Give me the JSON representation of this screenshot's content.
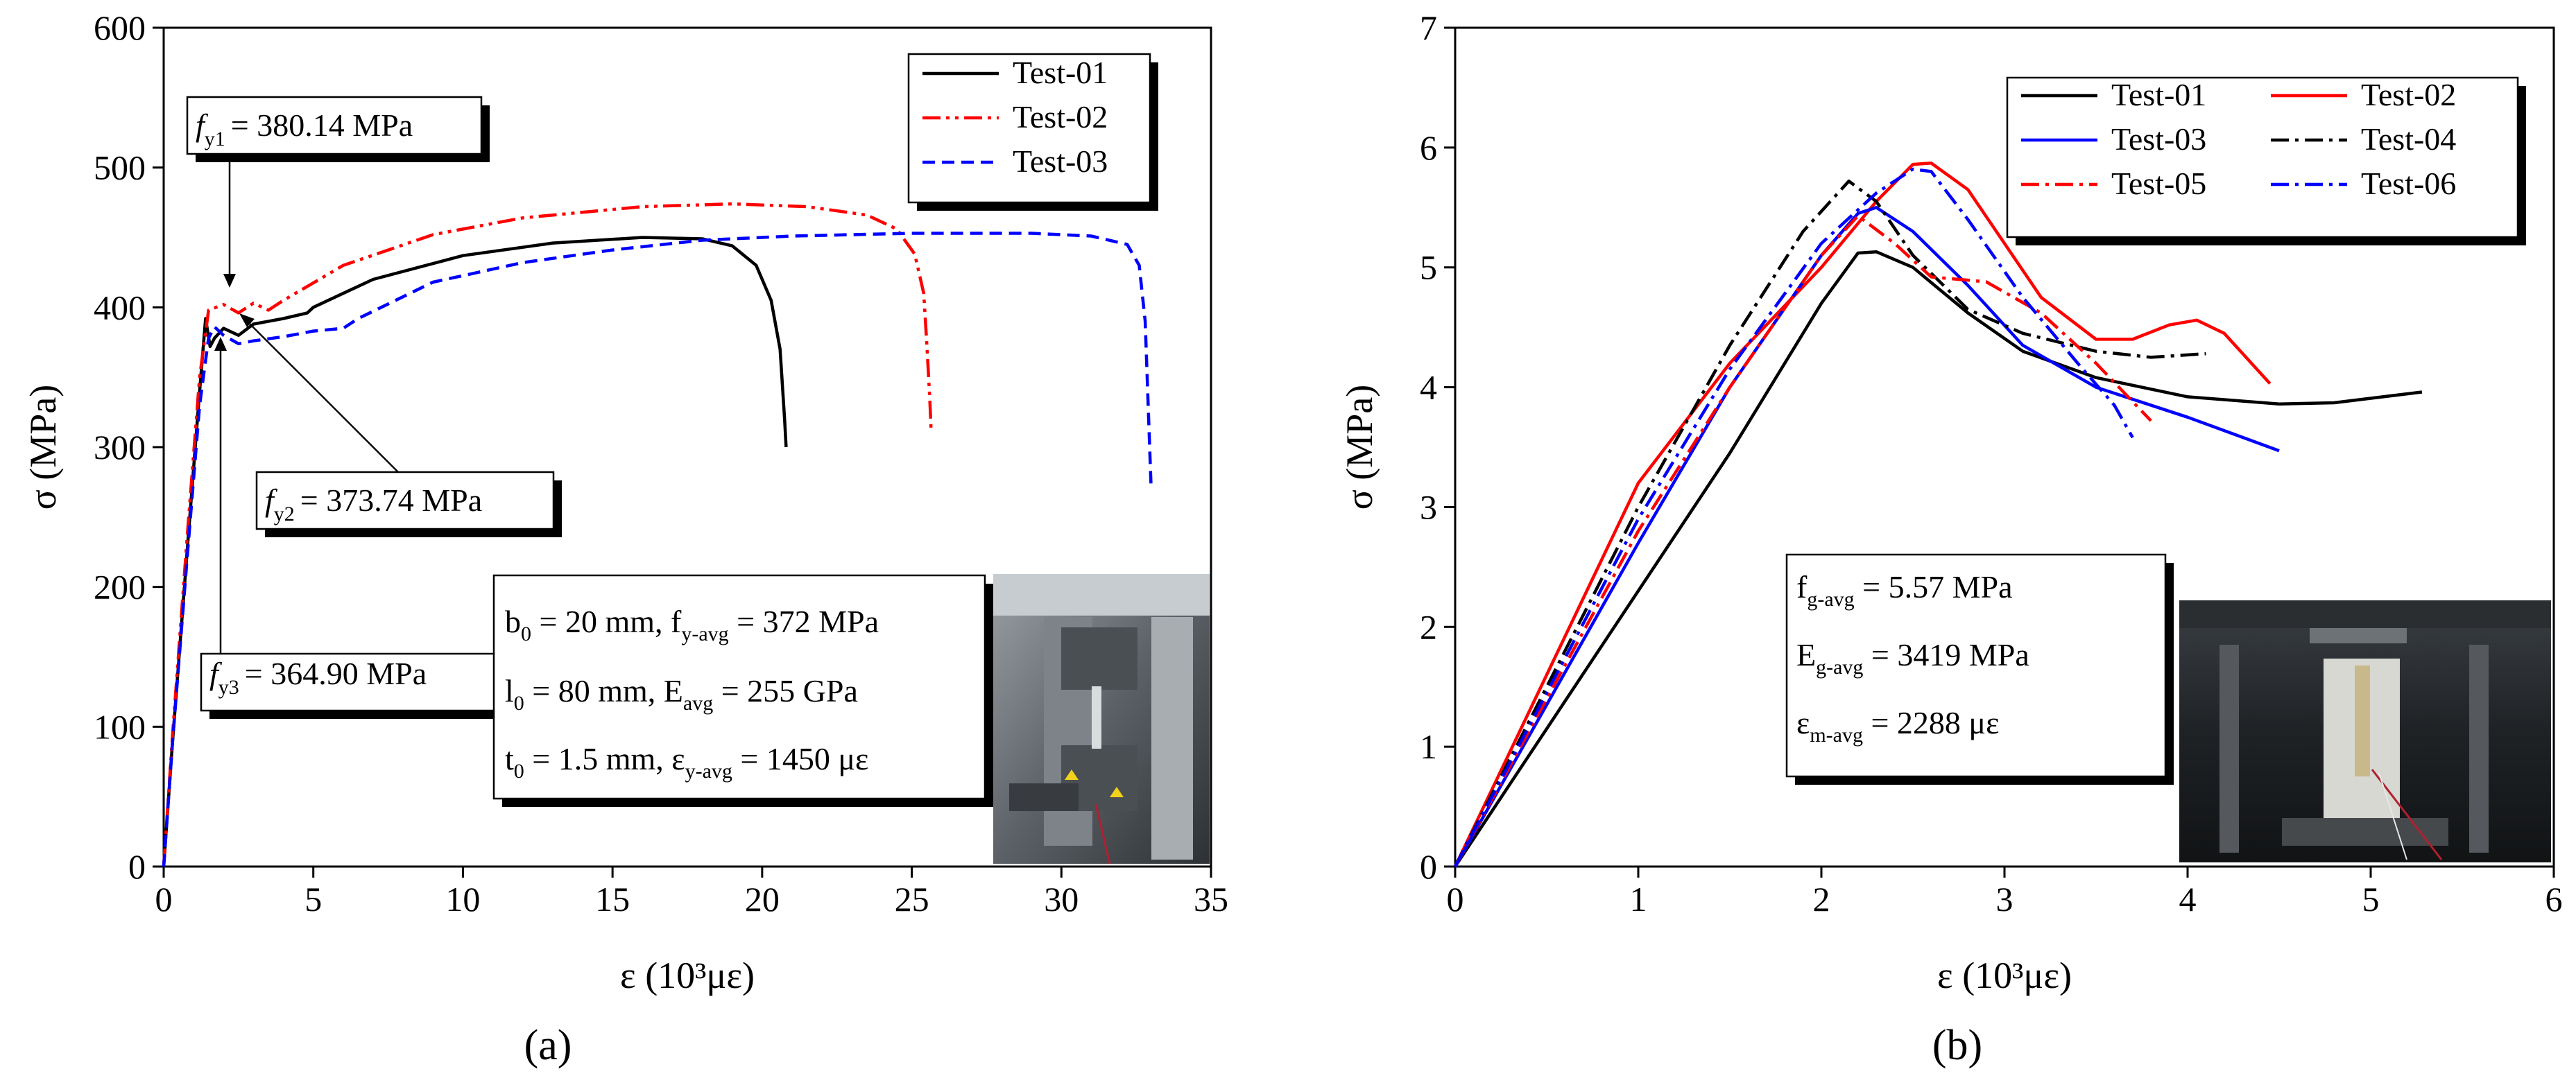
{
  "chart_data": [
    {
      "type": "line",
      "panel_label": "(a)",
      "xlabel": "ε (10³με)",
      "ylabel": "σ (MPa)",
      "xlim": [
        0,
        35
      ],
      "ylim": [
        0,
        600
      ],
      "xticks": [
        0,
        5,
        10,
        15,
        20,
        25,
        30,
        35
      ],
      "yticks": [
        0,
        100,
        200,
        300,
        400,
        500,
        600
      ],
      "legend_position": "top-right",
      "series": [
        {
          "name": "Test-01",
          "color": "#000000",
          "style": "solid",
          "points": [
            [
              0,
              0
            ],
            [
              0.3,
              90
            ],
            [
              0.8,
              230
            ],
            [
              1.2,
              340
            ],
            [
              1.4,
              392
            ],
            [
              1.55,
              372
            ],
            [
              1.7,
              378
            ],
            [
              2,
              385
            ],
            [
              2.5,
              380
            ],
            [
              3,
              388
            ],
            [
              4,
              392
            ],
            [
              4.8,
              396
            ],
            [
              5,
              400
            ],
            [
              7,
              420
            ],
            [
              10,
              437
            ],
            [
              13,
              446
            ],
            [
              16,
              450
            ],
            [
              18,
              449
            ],
            [
              19,
              444
            ],
            [
              19.8,
              430
            ],
            [
              20.3,
              405
            ],
            [
              20.6,
              370
            ],
            [
              20.75,
              320
            ],
            [
              20.8,
              300
            ]
          ]
        },
        {
          "name": "Test-02",
          "color": "#ff0000",
          "style": "dash-dot-dot",
          "points": [
            [
              0,
              0
            ],
            [
              0.3,
              95
            ],
            [
              0.8,
              240
            ],
            [
              1.2,
              350
            ],
            [
              1.5,
              398
            ],
            [
              2,
              402
            ],
            [
              2.5,
              396
            ],
            [
              3,
              403
            ],
            [
              3.5,
              398
            ],
            [
              4,
              405
            ],
            [
              6,
              430
            ],
            [
              9,
              452
            ],
            [
              12,
              464
            ],
            [
              16,
              472
            ],
            [
              19,
              474
            ],
            [
              21.5,
              472
            ],
            [
              23.5,
              466
            ],
            [
              24.5,
              456
            ],
            [
              25.1,
              438
            ],
            [
              25.4,
              410
            ],
            [
              25.5,
              375
            ],
            [
              25.6,
              335
            ],
            [
              25.65,
              310
            ]
          ]
        },
        {
          "name": "Test-03",
          "color": "#0000ff",
          "style": "dashed",
          "points": [
            [
              0,
              0
            ],
            [
              0.3,
              90
            ],
            [
              0.8,
              225
            ],
            [
              1.2,
              330
            ],
            [
              1.5,
              378
            ],
            [
              1.7,
              386
            ],
            [
              2,
              380
            ],
            [
              2.5,
              374
            ],
            [
              3,
              376
            ],
            [
              4,
              379
            ],
            [
              5,
              383
            ],
            [
              6,
              385
            ],
            [
              6.5,
              392
            ],
            [
              9,
              418
            ],
            [
              12,
              432
            ],
            [
              15,
              441
            ],
            [
              18,
              448
            ],
            [
              21,
              451
            ],
            [
              25,
              453
            ],
            [
              29,
              453
            ],
            [
              31,
              451
            ],
            [
              32.2,
              445
            ],
            [
              32.6,
              430
            ],
            [
              32.8,
              390
            ],
            [
              32.9,
              330
            ],
            [
              33,
              270
            ]
          ]
        }
      ],
      "annotations": [
        {
          "symbol": "f",
          "sub": "y1",
          "text": "= 380.14 MPa"
        },
        {
          "symbol": "f",
          "sub": "y2",
          "text": "= 373.74 MPa"
        },
        {
          "symbol": "f",
          "sub": "y3",
          "text": "= 364.90 MPa"
        }
      ],
      "info_box": [
        [
          "b",
          "0",
          " = 20 mm, f",
          "y-avg",
          " = 372 MPa"
        ],
        [
          "l",
          "0",
          " = 80 mm,  E",
          "avg",
          " = 255 GPa"
        ],
        [
          "t",
          "0",
          " = 1.5 mm, ε",
          "y-avg",
          " = 1450 με"
        ]
      ]
    },
    {
      "type": "line",
      "panel_label": "(b)",
      "xlabel": "ε (10³με)",
      "ylabel": "σ (MPa)",
      "xlim": [
        0,
        6
      ],
      "ylim": [
        0,
        7
      ],
      "xticks": [
        0,
        1,
        2,
        3,
        4,
        5,
        6
      ],
      "yticks": [
        0,
        1,
        2,
        3,
        4,
        5,
        6,
        7
      ],
      "legend_position": "top-right",
      "series": [
        {
          "name": "Test-01",
          "color": "#000000",
          "style": "solid",
          "points": [
            [
              0,
              0
            ],
            [
              0.5,
              1.15
            ],
            [
              1,
              2.3
            ],
            [
              1.5,
              3.45
            ],
            [
              2,
              4.7
            ],
            [
              2.2,
              5.12
            ],
            [
              2.3,
              5.13
            ],
            [
              2.5,
              5.0
            ],
            [
              2.8,
              4.62
            ],
            [
              3.1,
              4.3
            ],
            [
              3.5,
              4.08
            ],
            [
              4,
              3.92
            ],
            [
              4.5,
              3.86
            ],
            [
              4.8,
              3.87
            ],
            [
              5.28,
              3.96
            ]
          ]
        },
        {
          "name": "Test-02",
          "color": "#ff0000",
          "style": "solid",
          "points": [
            [
              0,
              0
            ],
            [
              0.5,
              1.6
            ],
            [
              1,
              3.2
            ],
            [
              1.5,
              4.2
            ],
            [
              2,
              5.0
            ],
            [
              2.3,
              5.55
            ],
            [
              2.5,
              5.86
            ],
            [
              2.6,
              5.87
            ],
            [
              2.8,
              5.65
            ],
            [
              3,
              5.2
            ],
            [
              3.2,
              4.75
            ],
            [
              3.5,
              4.4
            ],
            [
              3.7,
              4.4
            ],
            [
              3.9,
              4.52
            ],
            [
              4.05,
              4.56
            ],
            [
              4.2,
              4.45
            ],
            [
              4.45,
              4.03
            ]
          ]
        },
        {
          "name": "Test-03",
          "color": "#0000ff",
          "style": "solid",
          "points": [
            [
              0,
              0
            ],
            [
              0.5,
              1.35
            ],
            [
              1,
              2.7
            ],
            [
              1.5,
              4.0
            ],
            [
              2,
              5.1
            ],
            [
              2.2,
              5.45
            ],
            [
              2.3,
              5.5
            ],
            [
              2.5,
              5.3
            ],
            [
              2.8,
              4.85
            ],
            [
              3.1,
              4.35
            ],
            [
              3.5,
              4.0
            ],
            [
              4,
              3.75
            ],
            [
              4.5,
              3.47
            ]
          ]
        },
        {
          "name": "Test-04",
          "color": "#000000",
          "style": "dash-dot",
          "points": [
            [
              0,
              0
            ],
            [
              0.5,
              1.5
            ],
            [
              1,
              3.0
            ],
            [
              1.5,
              4.35
            ],
            [
              1.9,
              5.3
            ],
            [
              2.15,
              5.72
            ],
            [
              2.3,
              5.55
            ],
            [
              2.5,
              5.1
            ],
            [
              2.8,
              4.65
            ],
            [
              3.1,
              4.45
            ],
            [
              3.5,
              4.3
            ],
            [
              3.8,
              4.25
            ],
            [
              4.1,
              4.28
            ]
          ]
        },
        {
          "name": "Test-05",
          "color": "#ff0000",
          "style": "dash-dot",
          "points": [
            [
              0,
              0
            ],
            [
              0.5,
              1.4
            ],
            [
              1,
              2.8
            ],
            [
              1.5,
              4.0
            ],
            [
              2,
              5.1
            ],
            [
              2.2,
              5.43
            ],
            [
              2.4,
              5.2
            ],
            [
              2.6,
              4.92
            ],
            [
              2.9,
              4.88
            ],
            [
              3.2,
              4.62
            ],
            [
              3.5,
              4.2
            ],
            [
              3.8,
              3.72
            ]
          ]
        },
        {
          "name": "Test-06",
          "color": "#0000ff",
          "style": "dash-dot",
          "points": [
            [
              0,
              0
            ],
            [
              0.5,
              1.45
            ],
            [
              1,
              2.9
            ],
            [
              1.5,
              4.15
            ],
            [
              2,
              5.2
            ],
            [
              2.3,
              5.62
            ],
            [
              2.5,
              5.82
            ],
            [
              2.6,
              5.8
            ],
            [
              2.8,
              5.4
            ],
            [
              3.1,
              4.75
            ],
            [
              3.4,
              4.2
            ],
            [
              3.6,
              3.85
            ],
            [
              3.7,
              3.58
            ]
          ]
        }
      ],
      "info_box": [
        [
          "f",
          "g-avg",
          " = 5.57 MPa"
        ],
        [
          "E",
          "g-avg",
          " = 3419 MPa"
        ],
        [
          "ε",
          "m-avg",
          " = 2288 με"
        ]
      ]
    }
  ],
  "colors": {
    "black": "#000000",
    "red": "#ff0000",
    "blue": "#0000ff"
  },
  "photos": [
    {
      "icon": "tensile-test-photo-icon"
    },
    {
      "icon": "compression-test-photo-icon"
    }
  ]
}
